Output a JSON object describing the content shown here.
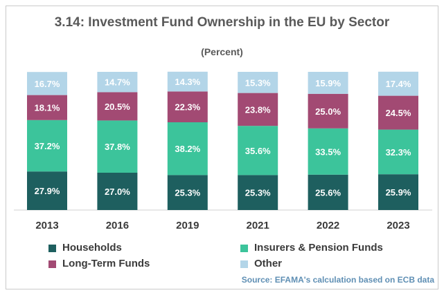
{
  "chart_data": {
    "type": "bar",
    "stacked": true,
    "title": "3.14: Investment Fund Ownership in the EU by Sector",
    "subtitle": "(Percent)",
    "categories": [
      "2013",
      "2016",
      "2019",
      "2021",
      "2022",
      "2023"
    ],
    "ylim": [
      0,
      100
    ],
    "grid": false,
    "legend_position": "bottom",
    "series": [
      {
        "name": "Households",
        "color": "#1e5f5f",
        "values": [
          27.9,
          27.0,
          25.3,
          25.3,
          25.6,
          25.9
        ],
        "labels": [
          "27.9%",
          "27.0%",
          "25.3%",
          "25.3%",
          "25.6%",
          "25.9%"
        ]
      },
      {
        "name": "Insurers & Pension Funds",
        "color": "#3cc49b",
        "values": [
          37.2,
          37.8,
          38.2,
          35.6,
          33.5,
          32.3
        ],
        "labels": [
          "37.2%",
          "37.8%",
          "38.2%",
          "35.6%",
          "33.5%",
          "32.3%"
        ]
      },
      {
        "name": "Long-Term Funds",
        "color": "#a24a73",
        "values": [
          18.1,
          20.5,
          22.3,
          23.8,
          25.0,
          24.5
        ],
        "labels": [
          "18.1%",
          "20.5%",
          "22.3%",
          "23.8%",
          "25.0%",
          "24.5%"
        ]
      },
      {
        "name": "Other",
        "color": "#b3d5e8",
        "values": [
          16.7,
          14.7,
          14.3,
          15.3,
          15.9,
          17.4
        ],
        "labels": [
          "16.7%",
          "14.7%",
          "14.3%",
          "15.3%",
          "15.9%",
          "17.4%"
        ]
      }
    ],
    "source": "Source: EFAMA's calculation based on ECB data"
  }
}
